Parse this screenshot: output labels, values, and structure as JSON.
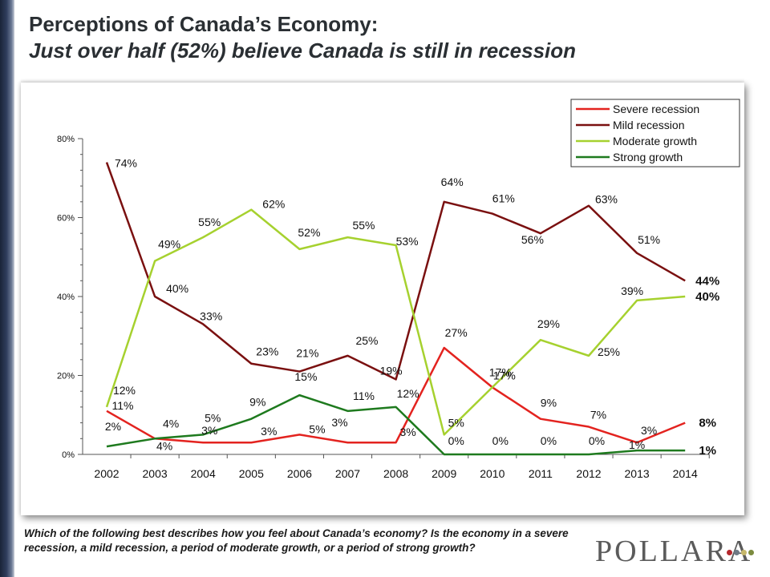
{
  "header": {
    "title": "Perceptions of Canada’s Economy:",
    "subtitle": "Just over half (52%) believe Canada is still in recession"
  },
  "question": "Which of the following best describes how you feel about Canada’s economy? Is the economy in a severe recession, a mild recession, a period of moderate growth, or a period of strong growth?",
  "logo": {
    "text": "POLLARA",
    "dot_colors": [
      "#b5282d",
      "#6f7a85",
      "#c7b86a",
      "#7c8b3f"
    ]
  },
  "chart_data": {
    "type": "line",
    "categories": [
      "2002",
      "2003",
      "2004",
      "2005",
      "2006",
      "2007",
      "2008",
      "2009",
      "2010",
      "2011",
      "2012",
      "2013",
      "2014"
    ],
    "ylim": [
      0,
      80
    ],
    "yticks": [
      "0%",
      "20%",
      "40%",
      "60%",
      "80%"
    ],
    "grid": false,
    "legend_position": "top-right",
    "series": [
      {
        "name": "Severe recession",
        "color": "#e3231f",
        "values": [
          11,
          4,
          3,
          3,
          5,
          3,
          3,
          27,
          17,
          9,
          7,
          3,
          8
        ],
        "labels": [
          "11%",
          "4%",
          "3%",
          "3%",
          "5%",
          "3%",
          "3%",
          "27%",
          "17%",
          "9%",
          "7%",
          "3%",
          "8%"
        ]
      },
      {
        "name": "Mild recession",
        "color": "#7a1010",
        "values": [
          74,
          40,
          33,
          23,
          21,
          25,
          19,
          64,
          61,
          56,
          63,
          51,
          44
        ],
        "labels": [
          "74%",
          "40%",
          "33%",
          "23%",
          "21%",
          "25%",
          "19%",
          "64%",
          "61%",
          "56%",
          "63%",
          "51%",
          "44%"
        ]
      },
      {
        "name": "Moderate growth",
        "color": "#a6d12f",
        "values": [
          12,
          49,
          55,
          62,
          52,
          55,
          53,
          5,
          17,
          29,
          25,
          39,
          40
        ],
        "labels": [
          "12%",
          "49%",
          "55%",
          "62%",
          "52%",
          "55%",
          "53%",
          "5%",
          "17%",
          "29%",
          "25%",
          "39%",
          "40%"
        ]
      },
      {
        "name": "Strong growth",
        "color": "#1e7a1e",
        "values": [
          2,
          4,
          5,
          9,
          15,
          11,
          12,
          0,
          0,
          0,
          0,
          1,
          1
        ],
        "labels": [
          "2%",
          "4%",
          "5%",
          "9%",
          "15%",
          "11%",
          "12%",
          "0%",
          "0%",
          "0%",
          "0%",
          "1%",
          "1%"
        ]
      }
    ]
  }
}
